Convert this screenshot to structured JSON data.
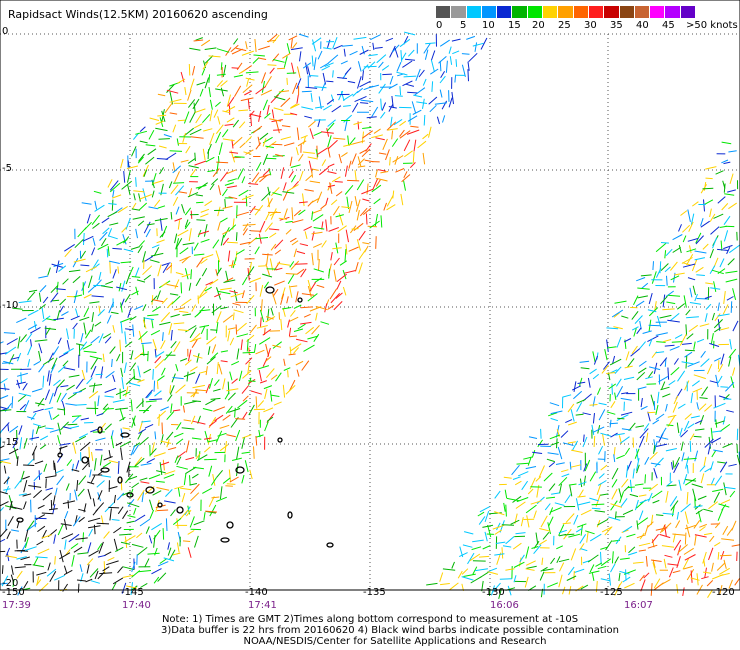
{
  "title": "Rapidsact Winds(12.5KM) 20160620 ascending",
  "legend": {
    "colors": [
      "#555555",
      "#999999",
      "#00c8ff",
      "#0096ff",
      "#0a28d2",
      "#00b400",
      "#00e600",
      "#ffd200",
      "#ffa000",
      "#ff6400",
      "#ff1e1e",
      "#c80000",
      "#8b4513",
      "#c86432",
      "#ff00ff",
      "#b400ff",
      "#6400c8"
    ],
    "labels": [
      "0",
      "5",
      "10",
      "15",
      "20",
      "25",
      "30",
      "35",
      "40",
      "45",
      ">50 knots"
    ]
  },
  "map": {
    "lat_labels": [
      "0",
      "-5",
      "-10",
      "-15",
      "-20"
    ],
    "lon_labels": [
      "-150",
      "-145",
      "-140",
      "-135",
      "-130",
      "-125",
      "-120"
    ],
    "time_labels": [
      "17:39",
      "17:40",
      "17:41",
      "16:06",
      "16:07"
    ]
  },
  "notes": [
    "Note: 1) Times are GMT 2)Times along bottom correspond to measurement at -10S",
    "3)Data buffer is 22 hrs from 20160620 4) Black wind barbs indicate possible contamination",
    "NOAA/NESDIS/Center for Satellite Applications and Research"
  ]
}
